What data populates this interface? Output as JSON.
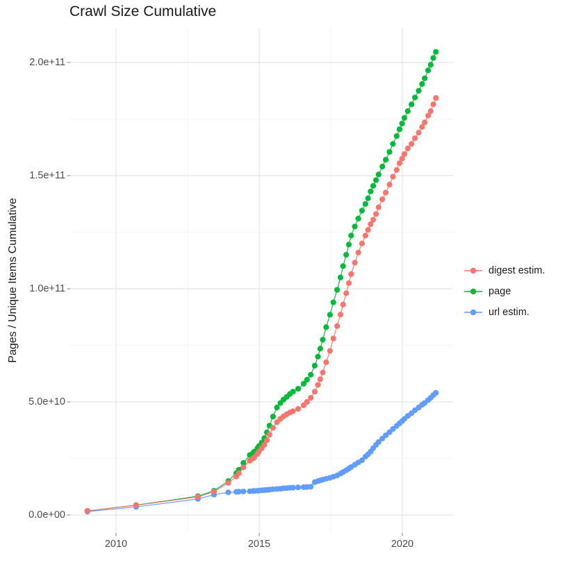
{
  "title": "Crawl Size Cumulative",
  "ylabel": "Pages / Unique Items Cumulative",
  "chart_data": {
    "type": "scatter",
    "title": "Crawl Size Cumulative",
    "xlabel": "",
    "ylabel": "Pages / Unique Items Cumulative",
    "x_unit": "year",
    "y_unit": "pages / unique items (billions, 1e9)",
    "xlim": [
      2008.4,
      2021.8
    ],
    "ylim_1e9": [
      -10,
      215
    ],
    "grid": true,
    "legend_position": "right",
    "background": "#ffffff",
    "major_grid_color": "#e5e5e5",
    "minor_grid_color": "#f2f2f2",
    "tick_color": "#8c8c8c",
    "tick_label_color": "#4d4d4d",
    "text_color": "#1a1a1a",
    "x_ticks": {
      "values": [
        2010,
        2015,
        2020
      ],
      "labels": [
        "2010",
        "2015",
        "2020"
      ],
      "minor": [
        2012.5,
        2017.5
      ]
    },
    "y_ticks": {
      "values_1e9": [
        0,
        50,
        100,
        150,
        200
      ],
      "labels": [
        "0.0e+00",
        "5.0e+10",
        "1.0e+11",
        "1.5e+11",
        "2.0e+11"
      ],
      "minor_1e9": [
        25,
        75,
        125,
        175
      ]
    },
    "x": [
      2009.0,
      2010.7,
      2012.86,
      2013.42,
      2013.92,
      2014.2,
      2014.29,
      2014.45,
      2014.67,
      2014.79,
      2014.83,
      2014.94,
      2014.99,
      2015.09,
      2015.18,
      2015.27,
      2015.36,
      2015.48,
      2015.62,
      2015.74,
      2015.85,
      2015.96,
      2016.07,
      2016.18,
      2016.36,
      2016.55,
      2016.67,
      2016.8,
      2016.94,
      2017.05,
      2017.13,
      2017.22,
      2017.34,
      2017.47,
      2017.59,
      2017.72,
      2017.84,
      2017.93,
      2018.04,
      2018.13,
      2018.21,
      2018.34,
      2018.46,
      2018.59,
      2018.71,
      2018.8,
      2018.89,
      2018.98,
      2019.08,
      2019.17,
      2019.3,
      2019.42,
      2019.55,
      2019.67,
      2019.8,
      2019.9,
      2019.99,
      2020.07,
      2020.19,
      2020.32,
      2020.44,
      2020.57,
      2020.69,
      2020.78,
      2020.9,
      2020.99,
      2021.08,
      2021.17
    ],
    "draw_order": [
      2,
      1,
      0
    ],
    "series": [
      {
        "name": "digest estim.",
        "color": "#F8766D",
        "values_1e9": [
          1.8,
          4.3,
          8.0,
          10.3,
          14.2,
          17.0,
          18.5,
          21.0,
          24.0,
          25.0,
          25.5,
          27.0,
          28.0,
          29.5,
          31.0,
          33.0,
          35.5,
          38.5,
          41.0,
          42.5,
          43.6,
          44.5,
          45.3,
          45.9,
          46.9,
          48.5,
          50.0,
          51.8,
          54.5,
          57.5,
          60.0,
          63.0,
          67.5,
          72.5,
          78.0,
          83.5,
          88.6,
          93.0,
          98.0,
          102.5,
          106.5,
          111.5,
          116.0,
          120.0,
          123.5,
          126.0,
          128.5,
          130.5,
          133.0,
          136.0,
          139.5,
          142.5,
          146.0,
          149.5,
          152.5,
          155.5,
          157.5,
          159.5,
          162.0,
          164.0,
          166.5,
          169.0,
          171.5,
          173.5,
          176.5,
          178.5,
          181.5,
          184.3
        ]
      },
      {
        "name": "page",
        "color": "#00BA38",
        "values_1e9": [
          1.8,
          4.4,
          8.3,
          10.7,
          15.0,
          18.5,
          20.0,
          23.0,
          26.5,
          27.5,
          28.0,
          29.5,
          30.5,
          32.0,
          34.0,
          36.5,
          39.5,
          43.5,
          47.5,
          49.5,
          51.0,
          52.2,
          53.5,
          54.5,
          55.8,
          58.0,
          59.8,
          62.0,
          66.0,
          70.0,
          73.5,
          77.5,
          83.0,
          88.5,
          94.0,
          99.5,
          105.0,
          110.0,
          115.0,
          119.5,
          123.5,
          127.5,
          131.0,
          134.5,
          137.5,
          140.0,
          143.0,
          145.5,
          148.0,
          150.5,
          154.0,
          157.0,
          160.5,
          164.0,
          167.5,
          170.5,
          173.0,
          175.5,
          178.5,
          181.5,
          184.5,
          187.5,
          190.5,
          193.0,
          196.5,
          199.0,
          202.0,
          204.7
        ]
      },
      {
        "name": "url estim.",
        "color": "#619CFF",
        "values_1e9": [
          1.5,
          3.6,
          7.1,
          9.0,
          10.0,
          10.2,
          10.3,
          10.4,
          10.5,
          10.6,
          10.6,
          10.7,
          10.8,
          10.9,
          11.0,
          11.1,
          11.2,
          11.4,
          11.5,
          11.6,
          11.8,
          11.9,
          12.0,
          12.1,
          12.2,
          12.3,
          12.4,
          12.5,
          14.5,
          15.0,
          15.3,
          15.6,
          16.0,
          16.4,
          16.9,
          17.5,
          18.3,
          19.0,
          19.8,
          20.5,
          21.2,
          22.2,
          23.2,
          24.2,
          25.8,
          26.8,
          28.0,
          29.5,
          31.0,
          32.3,
          33.8,
          35.2,
          36.6,
          38.0,
          39.4,
          40.5,
          41.5,
          42.5,
          43.8,
          45.0,
          46.3,
          47.5,
          48.7,
          49.5,
          50.8,
          51.8,
          53.0,
          54.0
        ]
      }
    ]
  }
}
